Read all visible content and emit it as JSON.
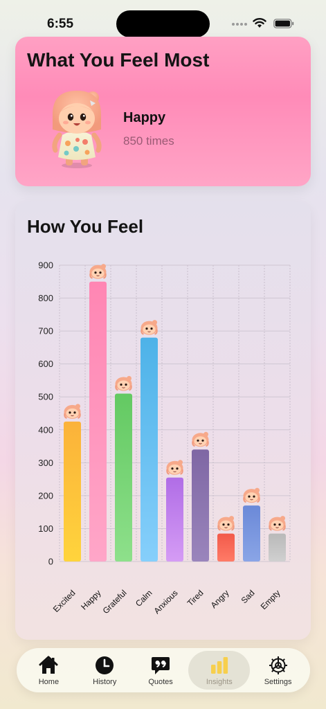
{
  "status": {
    "time": "6:55"
  },
  "most_felt": {
    "title": "What You Feel Most",
    "mood": "Happy",
    "count_text": "850 times"
  },
  "feel_card": {
    "title": "How You Feel"
  },
  "chart_data": {
    "type": "bar",
    "title": "How You Feel",
    "categories": [
      "Excited",
      "Happy",
      "Grateful",
      "Calm",
      "Anxious",
      "Tired",
      "Angry",
      "Sad",
      "Empty"
    ],
    "values": [
      425,
      850,
      510,
      680,
      255,
      340,
      85,
      170,
      85
    ],
    "ylim": [
      0,
      900
    ],
    "yticks": [
      "0",
      "100",
      "200",
      "300",
      "400",
      "500",
      "600",
      "700",
      "800",
      "900"
    ],
    "grid": true,
    "colors": [
      [
        "#fbb23a",
        "#ffd43c"
      ],
      [
        "#ff86b3",
        "#ffa6c8"
      ],
      [
        "#63c962",
        "#8ee08b"
      ],
      [
        "#4db2e8",
        "#86cffb"
      ],
      [
        "#b06de6",
        "#d59cf5"
      ],
      [
        "#7f67a4",
        "#9a85bc"
      ],
      [
        "#f25a4a",
        "#ff7b67"
      ],
      [
        "#6b89d8",
        "#8aa5e6"
      ],
      [
        "#b9b9b9",
        "#d0d0d0"
      ]
    ]
  },
  "tabs": [
    {
      "label": "Home",
      "icon": "home-icon"
    },
    {
      "label": "History",
      "icon": "clock-icon"
    },
    {
      "label": "Quotes",
      "icon": "quote-bubble-icon"
    },
    {
      "label": "Insights",
      "icon": "bar-chart-icon",
      "active": true
    },
    {
      "label": "Settings",
      "icon": "gear-icon"
    }
  ]
}
